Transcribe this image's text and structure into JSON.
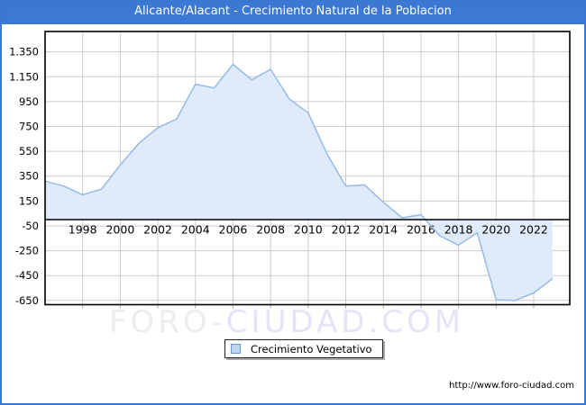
{
  "window": {
    "title": "Alicante/Alacant - Crecimiento Natural de la Poblacion"
  },
  "chart_data": {
    "type": "area",
    "title": "Alicante/Alacant - Crecimiento Natural de la Poblacion",
    "xlabel": "",
    "ylabel": "",
    "grid": true,
    "legend_position": "bottom-center",
    "x": [
      1996,
      1997,
      1998,
      1999,
      2000,
      2001,
      2002,
      2003,
      2004,
      2005,
      2006,
      2007,
      2008,
      2009,
      2010,
      2011,
      2012,
      2013,
      2014,
      2015,
      2016,
      2017,
      2018,
      2019,
      2020,
      2021,
      2022,
      2023
    ],
    "series": [
      {
        "name": "Crecimiento Vegetativo",
        "values": [
          310,
          270,
          200,
          245,
          440,
          615,
          740,
          810,
          1090,
          1060,
          1250,
          1125,
          1210,
          970,
          860,
          530,
          270,
          280,
          140,
          15,
          40,
          -130,
          -205,
          -105,
          -645,
          -650,
          -590,
          -475
        ]
      }
    ],
    "x_ticks": [
      {
        "value": 1998,
        "label": "1998"
      },
      {
        "value": 2000,
        "label": "2000"
      },
      {
        "value": 2002,
        "label": "2002"
      },
      {
        "value": 2004,
        "label": "2004"
      },
      {
        "value": 2006,
        "label": "2006"
      },
      {
        "value": 2008,
        "label": "2008"
      },
      {
        "value": 2010,
        "label": "2010"
      },
      {
        "value": 2012,
        "label": "2012"
      },
      {
        "value": 2014,
        "label": "2014"
      },
      {
        "value": 2016,
        "label": "2016"
      },
      {
        "value": 2018,
        "label": "2018"
      },
      {
        "value": 2020,
        "label": "2020"
      },
      {
        "value": 2022,
        "label": "2022"
      }
    ],
    "y_ticks": [
      {
        "value": 1350,
        "label": "1.350"
      },
      {
        "value": 1150,
        "label": "1.150"
      },
      {
        "value": 950,
        "label": "950"
      },
      {
        "value": 750,
        "label": "750"
      },
      {
        "value": 550,
        "label": "550"
      },
      {
        "value": 350,
        "label": "350"
      },
      {
        "value": 150,
        "label": "150"
      },
      {
        "value": -50,
        "label": "-50"
      },
      {
        "value": -250,
        "label": "-250"
      },
      {
        "value": -450,
        "label": "-450"
      },
      {
        "value": -650,
        "label": "-650"
      }
    ],
    "xlim": [
      1996,
      2023.92
    ],
    "ylim": [
      -684,
      1514
    ],
    "colors": {
      "line": "#94bbe7",
      "fill": "#dfebfa",
      "grid": "#cccccc",
      "tick": "#aaaaaa",
      "axis": "#000000"
    }
  },
  "legend": {
    "label": "Crecimiento Vegetativo",
    "swatch_color": "#bdd5f1"
  },
  "watermark": {
    "part1": "FORO-",
    "part2": "CIUDAD.COM"
  },
  "footer": {
    "url": "http://www.foro-ciudad.com"
  },
  "accent_color": "#3b79d5"
}
